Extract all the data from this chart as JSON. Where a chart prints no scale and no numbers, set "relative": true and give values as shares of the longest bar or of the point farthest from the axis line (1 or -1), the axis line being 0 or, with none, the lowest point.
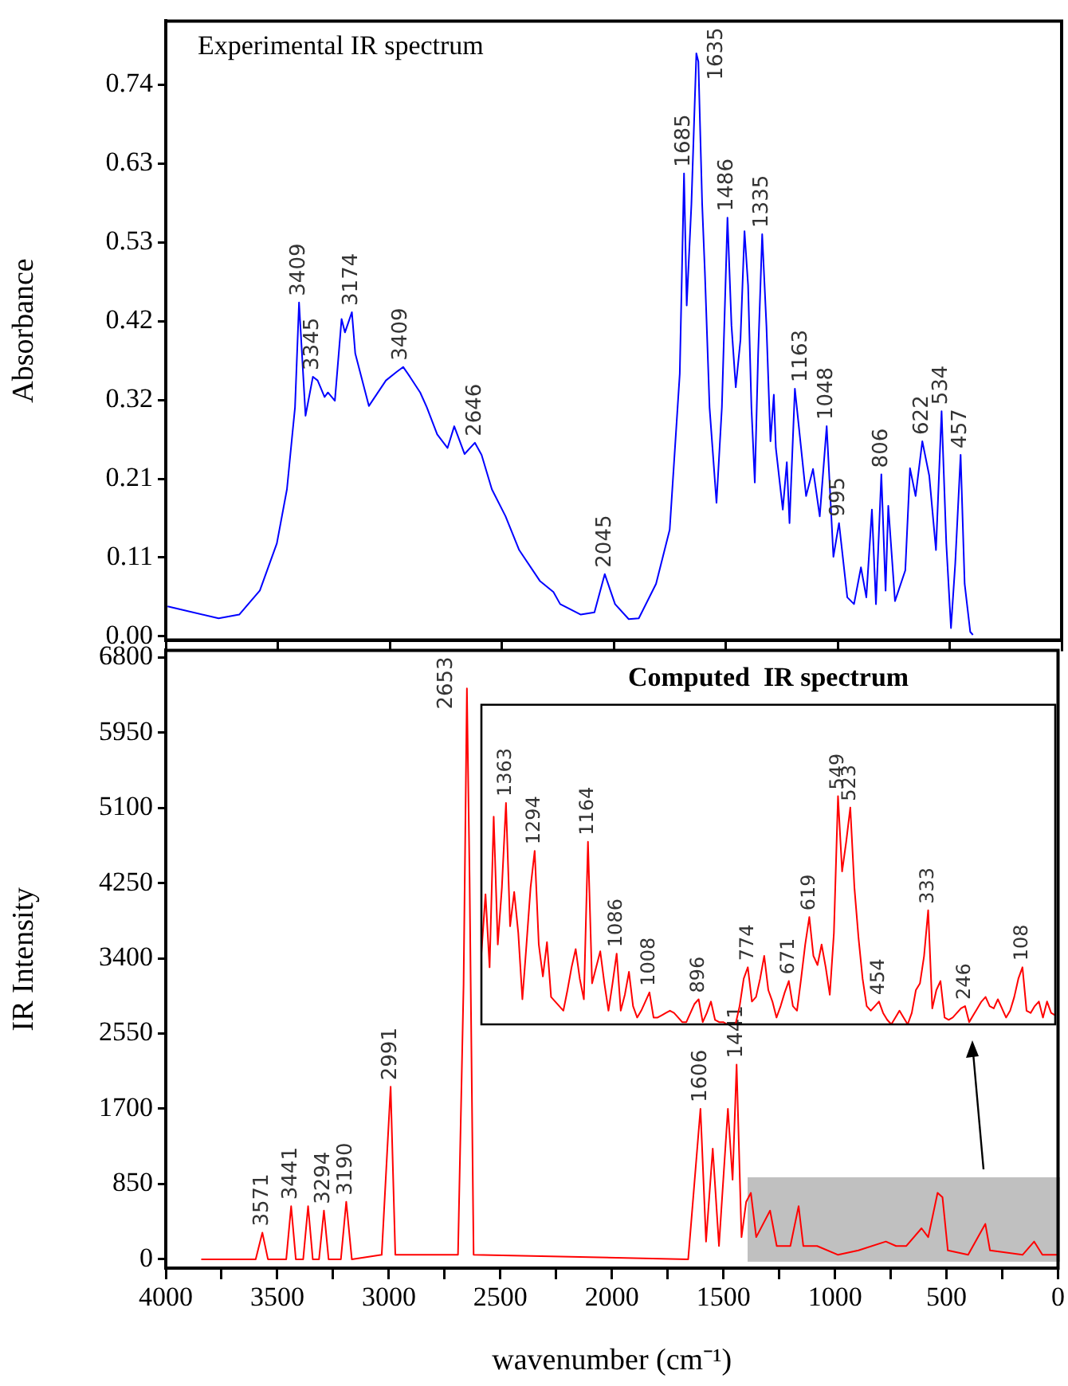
{
  "chart_data": [
    {
      "type": "line",
      "title": "Experimental IR spectrum",
      "ylabel": "Absorbance",
      "color": "#0000ff",
      "marker": "none",
      "tick_labels": "y",
      "xlim": [
        4000,
        0
      ],
      "xticks": [
        4000,
        3500,
        3000,
        2500,
        2000,
        1500,
        1000,
        500,
        0
      ],
      "ylim": [
        -0.005,
        0.82
      ],
      "yticks": [
        {
          "value": 0,
          "label": "0.00"
        },
        {
          "value": 0.105,
          "label": "0.11"
        },
        0.21,
        {
          "value": 0.315,
          "label": "0.32"
        },
        0.42,
        {
          "value": 0.525,
          "label": "0.53"
        },
        0.63,
        {
          "value": 0.735,
          "label": "0.74"
        }
      ],
      "x": [
        3992,
        3764,
        3672,
        3580,
        3504,
        3459,
        3435,
        3423,
        3405,
        3376,
        3343,
        3322,
        3291,
        3276,
        3245,
        3215,
        3200,
        3169,
        3154,
        3093,
        3017,
        2971,
        2940,
        2910,
        2864,
        2834,
        2788,
        2742,
        2712,
        2666,
        2620,
        2590,
        2544,
        2483,
        2422,
        2330,
        2269,
        2239,
        2147,
        2086,
        2040,
        1994,
        1933,
        1888,
        1811,
        1750,
        1705,
        1686,
        1674,
        1653,
        1631,
        1622,
        1605,
        1593,
        1572,
        1541,
        1517,
        1492,
        1474,
        1455,
        1434,
        1416,
        1400,
        1385,
        1370,
        1355,
        1337,
        1318,
        1300,
        1285,
        1276,
        1245,
        1227,
        1215,
        1191,
        1141,
        1110,
        1080,
        1049,
        1019,
        994,
        957,
        927,
        896,
        872,
        847,
        829,
        805,
        786,
        774,
        744,
        698,
        677,
        652,
        622,
        591,
        561,
        536,
        515,
        494,
        475,
        451,
        433,
        408,
        396
      ],
      "values": [
        0.04,
        0.024,
        0.029,
        0.061,
        0.124,
        0.196,
        0.269,
        0.305,
        0.445,
        0.294,
        0.346,
        0.341,
        0.319,
        0.325,
        0.314,
        0.423,
        0.405,
        0.432,
        0.377,
        0.307,
        0.341,
        0.352,
        0.359,
        0.346,
        0.325,
        0.305,
        0.269,
        0.251,
        0.28,
        0.243,
        0.258,
        0.242,
        0.196,
        0.16,
        0.115,
        0.074,
        0.059,
        0.043,
        0.029,
        0.032,
        0.083,
        0.043,
        0.023,
        0.024,
        0.07,
        0.142,
        0.35,
        0.617,
        0.441,
        0.576,
        0.777,
        0.766,
        0.576,
        0.486,
        0.305,
        0.178,
        0.305,
        0.558,
        0.414,
        0.332,
        0.395,
        0.54,
        0.468,
        0.305,
        0.205,
        0.377,
        0.536,
        0.414,
        0.26,
        0.322,
        0.251,
        0.169,
        0.232,
        0.151,
        0.33,
        0.187,
        0.223,
        0.16,
        0.28,
        0.106,
        0.151,
        0.052,
        0.043,
        0.092,
        0.052,
        0.169,
        0.043,
        0.216,
        0.061,
        0.174,
        0.047,
        0.088,
        0.224,
        0.187,
        0.26,
        0.214,
        0.115,
        0.3,
        0.124,
        0.011,
        0.097,
        0.242,
        0.07,
        0.006,
        0.002
      ],
      "annotations": [
        {
          "text": "3409",
          "x": 3405,
          "y": 0.445
        },
        {
          "text": "3345",
          "x": 3343,
          "y": 0.346
        },
        {
          "text": "3174",
          "x": 3169,
          "y": 0.432
        },
        {
          "text": "3409",
          "x": 2950,
          "y": 0.359
        },
        {
          "text": "2646",
          "x": 2620,
          "y": 0.258
        },
        {
          "text": "2045",
          "x": 2040,
          "y": 0.083
        },
        {
          "text": "1685",
          "x": 1686,
          "y": 0.617
        },
        {
          "text": "1635",
          "x": 1631,
          "y": 0.777
        },
        {
          "text": "1486",
          "x": 1492,
          "y": 0.558
        },
        {
          "text": "1335",
          "x": 1337,
          "y": 0.536
        },
        {
          "text": "1163",
          "x": 1162,
          "y": 0.33
        },
        {
          "text": "1048",
          "x": 1049,
          "y": 0.28
        },
        {
          "text": "995",
          "x": 994,
          "y": 0.151
        },
        {
          "text": "806",
          "x": 805,
          "y": 0.216
        },
        {
          "text": "622",
          "x": 622,
          "y": 0.26
        },
        {
          "text": "534",
          "x": 536,
          "y": 0.3
        },
        {
          "text": "457",
          "x": 451,
          "y": 0.242
        }
      ]
    },
    {
      "type": "line",
      "ylabel": "IR Intensity",
      "xlabel": "wavenumber (cm⁻¹)",
      "color": "#ff0000",
      "marker": "none",
      "xlim": [
        4000,
        0
      ],
      "xticks": [
        4000,
        {
          "value": 3750,
          "label": null
        },
        3500,
        {
          "value": 3250,
          "label": null
        },
        3000,
        {
          "value": 2750,
          "label": null
        },
        2500,
        {
          "value": 2250,
          "label": null
        },
        2000,
        {
          "value": 1750,
          "label": null
        },
        1500,
        {
          "value": 1250,
          "label": null
        },
        1000,
        {
          "value": 750,
          "label": null
        },
        500,
        {
          "value": 250,
          "label": null
        },
        0
      ],
      "ylim": [
        -100,
        6880
      ],
      "yticks": [
        0,
        850,
        1700,
        2550,
        3400,
        4250,
        5100,
        5950,
        6800
      ],
      "x": [
        3841,
        3597,
        3567,
        3542,
        3460,
        3438,
        3417,
        3384,
        3362,
        3341,
        3313,
        3291,
        3270,
        3215,
        3191,
        3166,
        3032,
        2992,
        2971,
        2690,
        2665,
        2650,
        2638,
        2620,
        1658,
        1603,
        1578,
        1548,
        1520,
        1480,
        1459,
        1441,
        1419,
        1398,
        1377,
        1353,
        1291,
        1261,
        1200,
        1163,
        1142,
        1080,
        986,
        895,
        772,
        726,
        680,
        612,
        582,
        540,
        518,
        494,
        403,
        326,
        305,
        159,
        107,
        70,
        0
      ],
      "values": [
        0,
        0,
        300,
        0,
        0,
        600,
        0,
        0,
        600,
        0,
        0,
        550,
        0,
        0,
        650,
        0,
        50,
        1950,
        50,
        50,
        3100,
        6450,
        4300,
        50,
        0,
        1700,
        200,
        1250,
        150,
        1700,
        900,
        2200,
        250,
        650,
        750,
        250,
        550,
        150,
        150,
        600,
        150,
        150,
        50,
        100,
        200,
        150,
        150,
        350,
        250,
        750,
        700,
        100,
        50,
        400,
        100,
        50,
        200,
        50,
        50
      ],
      "annotations": [
        {
          "text": "3571",
          "x": 3567,
          "y": 300
        },
        {
          "text": "3441",
          "x": 3438,
          "y": 600
        },
        {
          "text": "3294",
          "x": 3291,
          "y": 550
        },
        {
          "text": "3190",
          "x": 3191,
          "y": 650
        },
        {
          "text": "2991",
          "x": 2992,
          "y": 1950
        },
        {
          "text": "2653",
          "x": 2650,
          "y": 6450
        },
        {
          "text": "1606",
          "x": 1603,
          "y": 1700
        },
        {
          "text": "1441",
          "x": 1441,
          "y": 2200
        }
      ]
    },
    {
      "type": "line",
      "title": "Computed  IR spectrum",
      "relative": true,
      "color": "#ff0000",
      "marker": "none",
      "categories": [
        null,
        null,
        null,
        null,
        null,
        null,
        null,
        null,
        null,
        null,
        null,
        null,
        null,
        null,
        null,
        null,
        null,
        null,
        null,
        null,
        null,
        null,
        null,
        null,
        null,
        null,
        null,
        null,
        null,
        null,
        null,
        null,
        null,
        null,
        null,
        null,
        null,
        null,
        null,
        null,
        null,
        null,
        null,
        null,
        null,
        null,
        null,
        null,
        null,
        null,
        null,
        null,
        null,
        null,
        null,
        null,
        null,
        null,
        null,
        null,
        null,
        null,
        null,
        null,
        null,
        null,
        null,
        null,
        null,
        null,
        null,
        null,
        null,
        null,
        null,
        null,
        null,
        null,
        null,
        null,
        null,
        null,
        null,
        null,
        null,
        null,
        null,
        null,
        null,
        null,
        null,
        null,
        null,
        null,
        null,
        null,
        null,
        null,
        null,
        null,
        null,
        null,
        null,
        null,
        null,
        null,
        null,
        null,
        null,
        null,
        null,
        null,
        null,
        null,
        null,
        null,
        null,
        null,
        null,
        null,
        null,
        null,
        null,
        null,
        null,
        null,
        null,
        null,
        null,
        null,
        null,
        null,
        null,
        null,
        null,
        null,
        null,
        null,
        null,
        null,
        null
      ],
      "values": [
        0.31,
        0.57,
        0.25,
        0.91,
        0.35,
        0.6,
        0.97,
        0.43,
        0.58,
        0.4,
        0.11,
        0.35,
        0.6,
        0.76,
        0.35,
        0.21,
        0.36,
        0.12,
        0.1,
        0.08,
        0.06,
        0.15,
        0.25,
        0.33,
        0.2,
        0.11,
        0.8,
        0.18,
        0.25,
        0.32,
        0.18,
        0.06,
        0.18,
        0.31,
        0.06,
        0.13,
        0.23,
        0.08,
        0.03,
        0.06,
        0.1,
        0.14,
        0.03,
        0.03,
        0.04,
        0.05,
        0.06,
        0.05,
        0.03,
        0.01,
        0.01,
        0.05,
        0.09,
        0.11,
        0.01,
        0.05,
        0.1,
        0.02,
        0.01,
        0.01,
        0,
        0,
        0,
        0.08,
        0.2,
        0.25,
        0.1,
        0.12,
        0.2,
        0.3,
        0.15,
        0.1,
        0.03,
        0.08,
        0.14,
        0.19,
        0.08,
        0.06,
        0.2,
        0.35,
        0.47,
        0.3,
        0.26,
        0.35,
        0.25,
        0.13,
        0.4,
        1,
        0.67,
        0.8,
        0.95,
        0.6,
        0.38,
        0.2,
        0.08,
        0.06,
        0.08,
        0.1,
        0.05,
        0.02,
        0,
        0.03,
        0.06,
        0.03,
        0,
        0.05,
        0.15,
        0.18,
        0.3,
        0.5,
        0.07,
        0.15,
        0.19,
        0.03,
        0.02,
        0.03,
        0.05,
        0.07,
        0.08,
        0.01,
        0.04,
        0.07,
        0.1,
        0.12,
        0.08,
        0.07,
        0.11,
        0.07,
        0.03,
        0.06,
        0.12,
        0.2,
        0.25,
        0.06,
        0.05,
        0.08,
        0.1,
        0.03,
        0.1,
        0.05,
        0.04
      ],
      "annotations": [
        {
          "text": "1363",
          "y": 0.97
        },
        {
          "text": "1294",
          "y": 0.76
        },
        {
          "text": "1164",
          "y": 0.8
        },
        {
          "text": "1086",
          "y": 0.31
        },
        {
          "text": "1008",
          "y": 0.14
        },
        {
          "text": "896",
          "y": 0.11
        },
        {
          "text": "774",
          "y": 0.25
        },
        {
          "text": "671",
          "y": 0.19
        },
        {
          "text": "619",
          "y": 0.47
        },
        {
          "text": "549",
          "y": 1
        },
        {
          "text": "523",
          "y": 0.95
        },
        {
          "text": "454",
          "y": 0.1
        },
        {
          "text": "333",
          "y": 0.5
        },
        {
          "text": "246",
          "y": 0.08
        },
        {
          "text": "108",
          "y": 0.25
        }
      ]
    }
  ]
}
